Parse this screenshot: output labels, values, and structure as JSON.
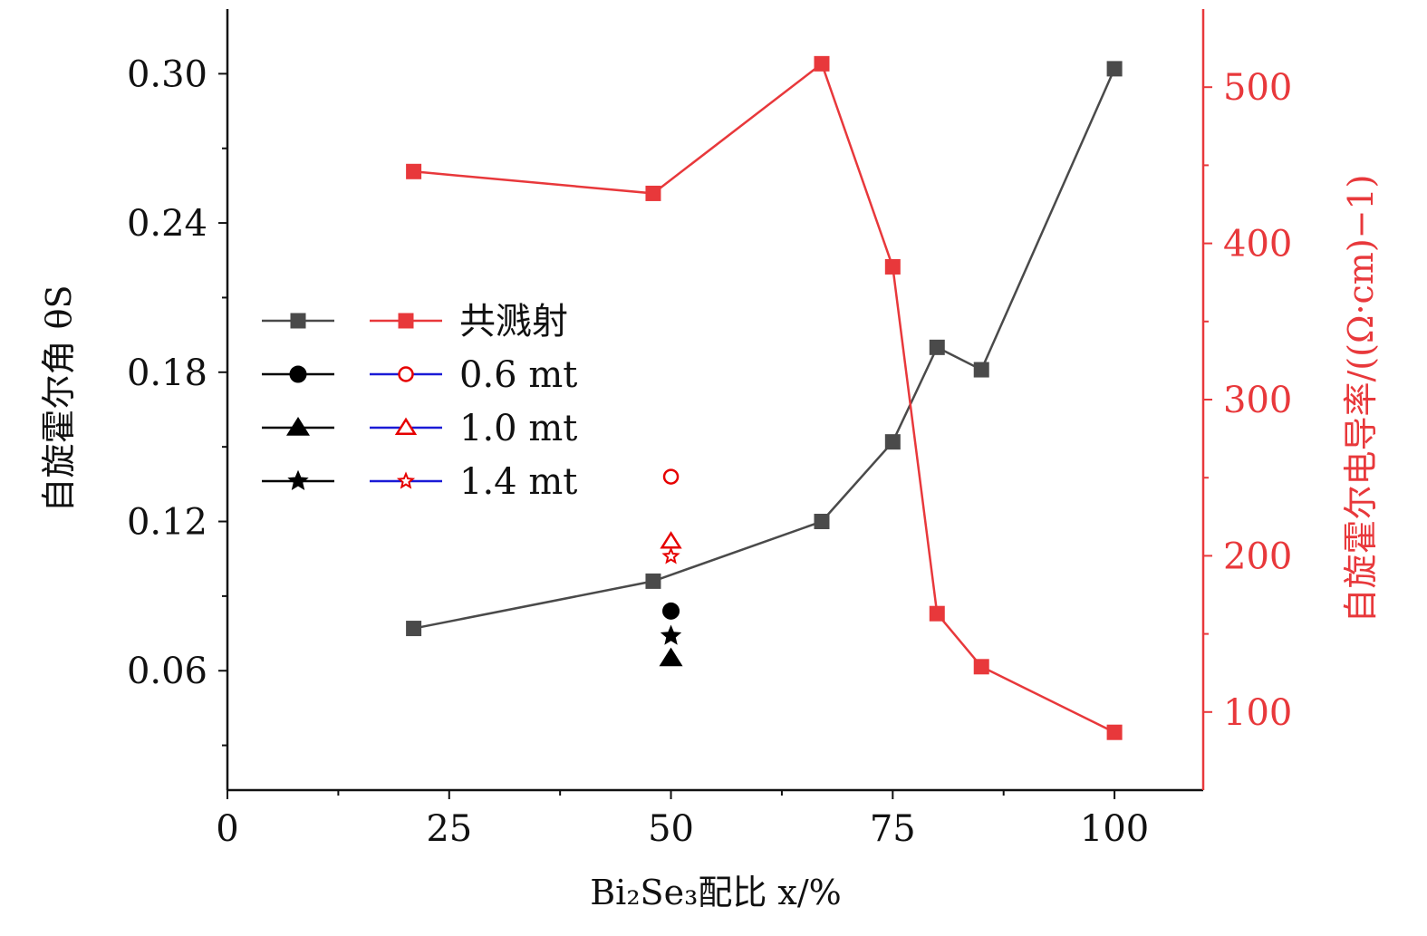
{
  "chart_data": {
    "type": "line",
    "xlabel": "Bi₂Se₃配比 x/%",
    "ylabel_left": "自旋霍尔角 θS",
    "ylabel_right": "自旋霍尔电导率/((Ω·cm)−1)",
    "xlim": [
      0,
      110
    ],
    "ylim_left": [
      0.012,
      0.326
    ],
    "ylim_right": [
      50,
      550
    ],
    "x_ticks": [
      0,
      25,
      50,
      75,
      100
    ],
    "x_tick_labels": [
      "0",
      "25",
      "50",
      "75",
      "100"
    ],
    "y_left_ticks": [
      0.06,
      0.12,
      0.18,
      0.24,
      0.3
    ],
    "y_left_tick_labels": [
      "0.06",
      "0.12",
      "0.18",
      "0.24",
      "0.30"
    ],
    "y_right_ticks": [
      100,
      200,
      300,
      400,
      500
    ],
    "y_right_tick_labels": [
      "100",
      "200",
      "300",
      "400",
      "500"
    ],
    "legend_position": "center-left",
    "grid": false,
    "series": [
      {
        "name": "共溅射",
        "axis": "left",
        "color": "#4a4a4a",
        "marker": "square",
        "x": [
          21,
          48,
          67,
          75,
          80,
          85,
          100
        ],
        "y": [
          0.077,
          0.096,
          0.12,
          0.152,
          0.19,
          0.181,
          0.302
        ]
      },
      {
        "name": "共溅射",
        "axis": "right",
        "color": "#e8383b",
        "marker": "square",
        "x": [
          21,
          48,
          67,
          75,
          80,
          85,
          100
        ],
        "y": [
          446,
          432,
          515,
          385,
          163,
          129,
          87
        ]
      },
      {
        "name": "0.6 mt",
        "axis": "left",
        "color": "#000000",
        "marker": "circle",
        "x": [
          50
        ],
        "y": [
          0.084
        ]
      },
      {
        "name": "0.6 mt",
        "axis": "left",
        "color": "#e60000",
        "marker": "circle-open",
        "x": [
          50
        ],
        "y": [
          0.138
        ]
      },
      {
        "name": "1.0 mt",
        "axis": "left",
        "color": "#000000",
        "marker": "triangle",
        "x": [
          50
        ],
        "y": [
          0.065
        ]
      },
      {
        "name": "1.0 mt",
        "axis": "left",
        "color": "#e60000",
        "marker": "triangle-open",
        "x": [
          50
        ],
        "y": [
          0.112
        ]
      },
      {
        "name": "1.4 mt",
        "axis": "left",
        "color": "#000000",
        "marker": "star",
        "x": [
          50
        ],
        "y": [
          0.074
        ]
      },
      {
        "name": "1.4 mt",
        "axis": "left",
        "color": "#e60000",
        "marker": "star-open",
        "x": [
          50
        ],
        "y": [
          0.106
        ]
      }
    ],
    "legend": {
      "rows": [
        {
          "label": "共溅射",
          "left_marker": "square",
          "right_marker": "square",
          "left_color": "#4a4a4a",
          "right_color": "#e8383b",
          "right_line_color": "#e8383b"
        },
        {
          "label": "0.6 mt",
          "left_marker": "circle",
          "right_marker": "circle-open",
          "left_color": "#000000",
          "right_color": "#e60000",
          "right_line_color": "#1a1ad6"
        },
        {
          "label": "1.0 mt",
          "left_marker": "triangle",
          "right_marker": "triangle-open",
          "left_color": "#000000",
          "right_color": "#e60000",
          "right_line_color": "#1a1ad6"
        },
        {
          "label": "1.4 mt",
          "left_marker": "star",
          "right_marker": "star-open",
          "left_color": "#000000",
          "right_color": "#e60000",
          "right_line_color": "#1a1ad6"
        }
      ]
    }
  },
  "colors": {
    "left_axis": "#111111",
    "right_axis": "#e8383b"
  }
}
